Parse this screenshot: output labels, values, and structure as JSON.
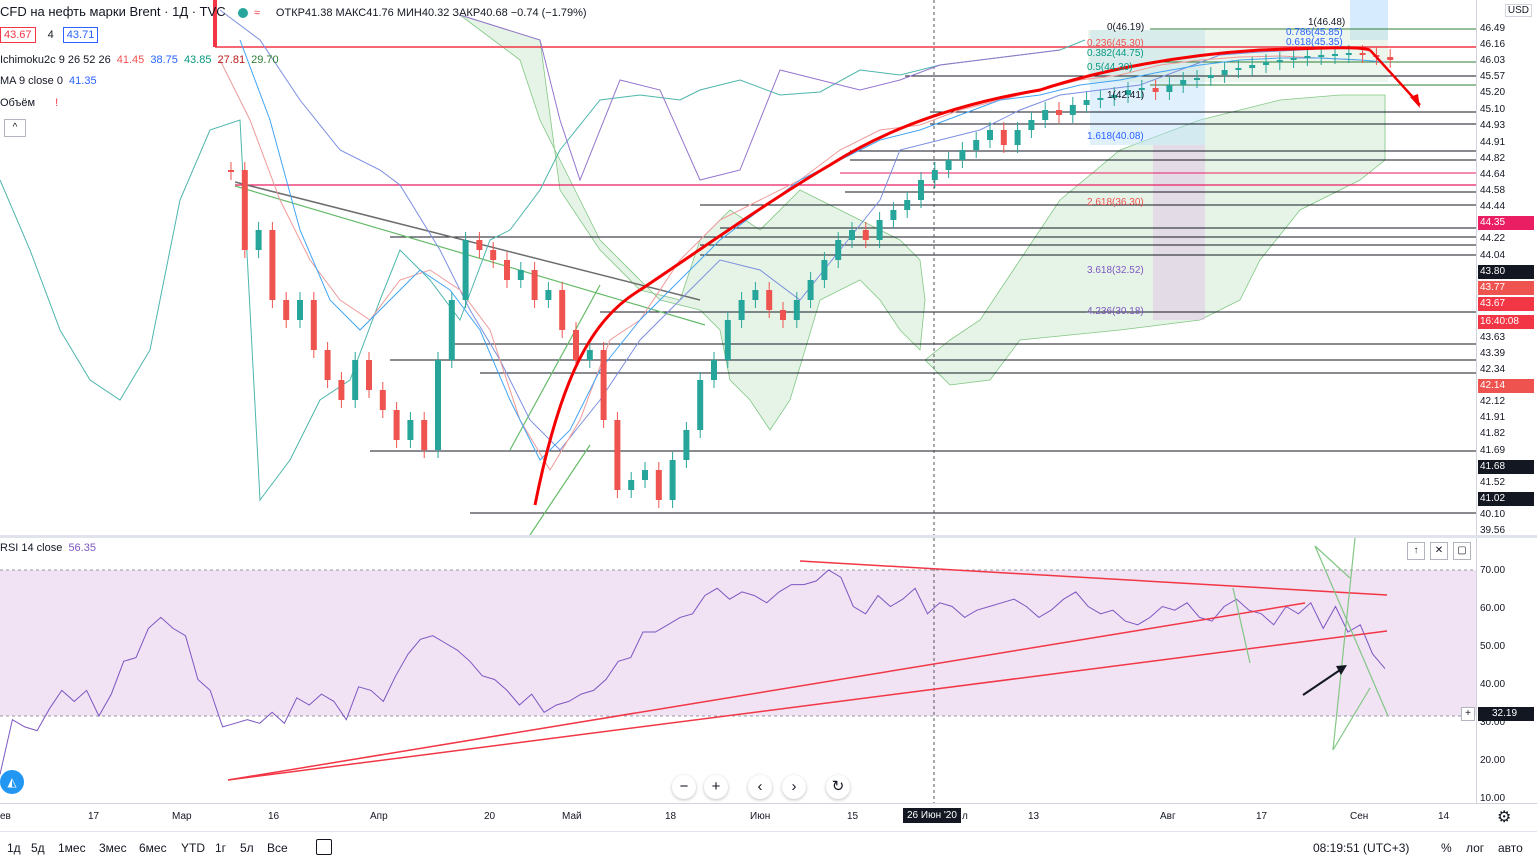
{
  "header": {
    "symbol": "CFD на нефть марки Brent · 1Д · TVC",
    "ohlc": "ОТКР41.38 МАКС41.76 МИН40.32 ЗАКР40.68 −0.74 (−1.79%)",
    "bid": "43.67",
    "spread": "4",
    "ask": "43.71"
  },
  "indicators": {
    "ichimoku_name": "Ichimoku2c 9 26 52 26",
    "ichimoku_values": [
      "41.45",
      "38.75",
      "43.85",
      "27.81",
      "29.70"
    ],
    "ichimoku_colors": [
      "#ef5350",
      "#2962ff",
      "#089981",
      "#b71c1c",
      "#2e7d32"
    ],
    "ma_name": "MA 9 close 0",
    "ma_value": "41.35",
    "volume_name": "Объём",
    "volume_warning": "!",
    "collapse": "^"
  },
  "currency": "USD",
  "price_axis_labels": [
    {
      "v": "46.49",
      "bg": "#ffffff",
      "fg": "#131722"
    },
    {
      "v": "46.16",
      "bg": "#ffffff",
      "fg": "#131722"
    },
    {
      "v": "46.03",
      "bg": "#ffffff",
      "fg": "#131722"
    },
    {
      "v": "45.57",
      "bg": "#ffffff",
      "fg": "#131722"
    },
    {
      "v": "45.20",
      "bg": "#ffffff",
      "fg": "#131722"
    },
    {
      "v": "45.10",
      "bg": "#ffffff",
      "fg": "#131722"
    },
    {
      "v": "44.93",
      "bg": "#ffffff",
      "fg": "#131722"
    },
    {
      "v": "44.91",
      "bg": "#ffffff",
      "fg": "#131722"
    },
    {
      "v": "44.82",
      "bg": "#ffffff",
      "fg": "#131722"
    },
    {
      "v": "44.64",
      "bg": "#ffffff",
      "fg": "#131722"
    },
    {
      "v": "44.58",
      "bg": "#ffffff",
      "fg": "#131722"
    },
    {
      "v": "44.44",
      "bg": "#ffffff",
      "fg": "#131722"
    },
    {
      "v": "44.35",
      "bg": "#e91e63",
      "fg": "#ffffff"
    },
    {
      "v": "44.22",
      "bg": "#ffffff",
      "fg": "#131722"
    },
    {
      "v": "44.04",
      "bg": "#ffffff",
      "fg": "#131722"
    },
    {
      "v": "43.80",
      "bg": "#131722",
      "fg": "#ffffff"
    },
    {
      "v": "43.77",
      "bg": "#ef5350",
      "fg": "#ffffff"
    },
    {
      "v": "43.67",
      "bg": "#f23645",
      "fg": "#ffffff"
    },
    {
      "v": "16:40:08",
      "bg": "#f23645",
      "fg": "#ffffff"
    },
    {
      "v": "43.63",
      "bg": "#ffffff",
      "fg": "#131722"
    },
    {
      "v": "43.39",
      "bg": "#ffffff",
      "fg": "#131722"
    },
    {
      "v": "42.34",
      "bg": "#ffffff",
      "fg": "#131722"
    },
    {
      "v": "42.14",
      "bg": "#ef5350",
      "fg": "#ffffff"
    },
    {
      "v": "42.12",
      "bg": "#ffffff",
      "fg": "#131722"
    },
    {
      "v": "41.91",
      "bg": "#ffffff",
      "fg": "#131722"
    },
    {
      "v": "41.82",
      "bg": "#ffffff",
      "fg": "#131722"
    },
    {
      "v": "41.69",
      "bg": "#ffffff",
      "fg": "#131722"
    },
    {
      "v": "41.68",
      "bg": "#131722",
      "fg": "#ffffff"
    },
    {
      "v": "41.52",
      "bg": "#ffffff",
      "fg": "#131722"
    },
    {
      "v": "41.02",
      "bg": "#131722",
      "fg": "#ffffff"
    },
    {
      "v": "40.10",
      "bg": "#ffffff",
      "fg": "#131722"
    },
    {
      "v": "39.56",
      "bg": "#ffffff",
      "fg": "#131722"
    }
  ],
  "fib_labels": [
    "0(46.19)",
    "0.236(45.30)",
    "0.382(44.75)",
    "0.5(44.30)",
    "1(42.41)",
    "1.618(40.08)",
    "2.618(36.30)",
    "3.618(32.52)",
    "4.236(30.18)",
    "1(46.48)",
    "0.786(45.85)",
    "0.618(45.35)"
  ],
  "rsi": {
    "name": "RSI 14 close",
    "value": "56.35",
    "axis_labels": [
      "70.00",
      "60.00",
      "50.00",
      "40.00",
      "30.00",
      "20.00",
      "10.00"
    ],
    "current_label": "32.19",
    "buttons": [
      "↑",
      "✕",
      "▢"
    ]
  },
  "time_axis": {
    "labels": [
      "ев",
      "17",
      "Мар",
      "16",
      "Апр",
      "20",
      "Май",
      "18",
      "Июн",
      "15",
      "л",
      "13",
      "Авг",
      "17",
      "Сен",
      "14"
    ],
    "crosshair_label": "26 Июн '20"
  },
  "nav_controls": [
    "−",
    "+",
    "‹",
    "›",
    "↻"
  ],
  "bottom_bar": {
    "timeframes": [
      "1д",
      "5д",
      "1мес",
      "3мес",
      "6мес",
      "YTD",
      "1г",
      "5л",
      "Все"
    ],
    "time": "08:19:51 (UTC+3)",
    "percent": "%",
    "log": "лог",
    "auto": "авто"
  }
}
